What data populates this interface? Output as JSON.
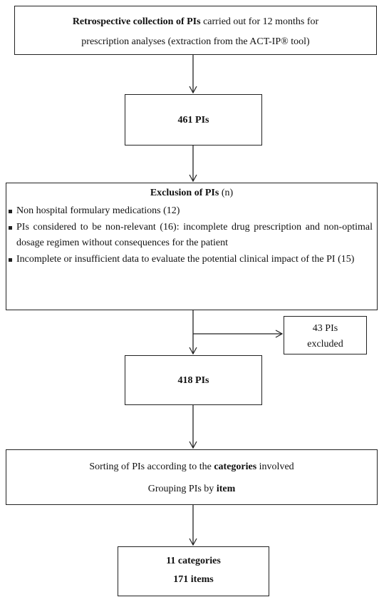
{
  "boxes": [
    {
      "lines": [
        [
          "Retrospective collection of PIs",
          " carried out for 12 months for"
        ],
        [
          "prescription analyses (extraction from the ACT-IP® tool)"
        ]
      ]
    },
    {
      "lines": [
        [
          "461 PIs"
        ]
      ]
    },
    {
      "title": "Exclusion of PIs",
      "title_suffix": " (n)",
      "items": [
        "Non hospital formulary medications (12)",
        "PIs considered to be non-relevant (16): incomplete drug prescription and non-optimal dosage regimen without consequences for the patient",
        "Incomplete or insufficient data to evaluate the potential clinical impact of the PI (15)"
      ]
    },
    {
      "lines": [
        [
          "43 PIs"
        ],
        [
          "excluded"
        ]
      ]
    },
    {
      "lines": [
        [
          "418 PIs"
        ]
      ]
    },
    {
      "lines": [
        [
          "Sorting of PIs according to the ",
          "categories",
          " involved"
        ],
        [
          "Grouping PIs by ",
          "item"
        ]
      ]
    },
    {
      "lines": [
        [
          "11 categories"
        ],
        [
          "171 items"
        ]
      ]
    }
  ]
}
